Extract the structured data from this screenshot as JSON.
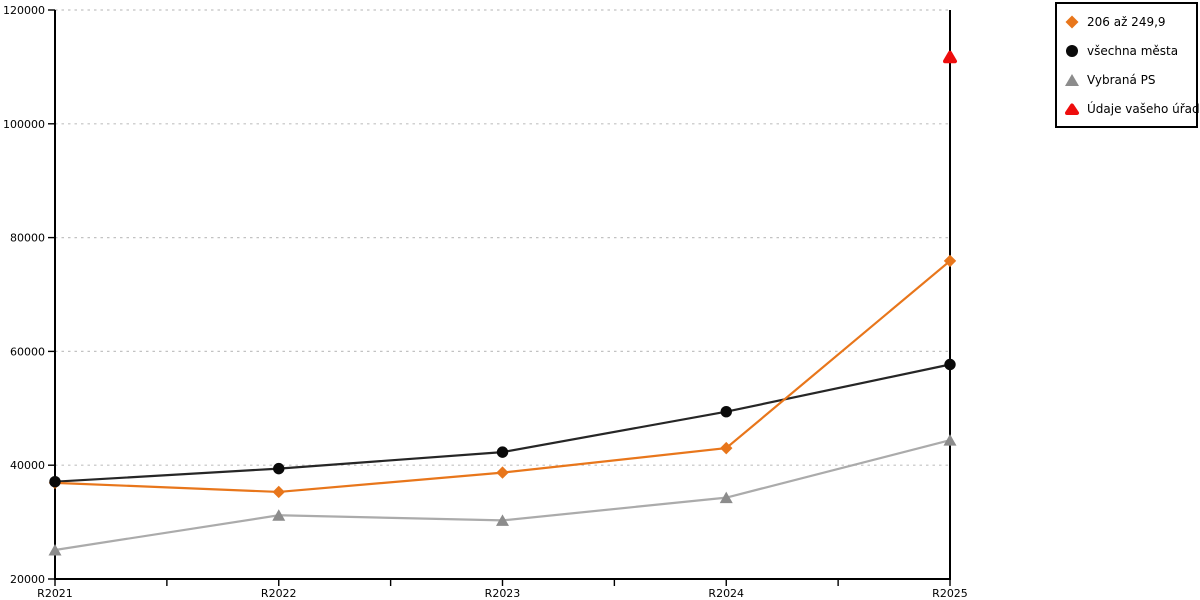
{
  "chart_data": {
    "type": "line",
    "title": "",
    "categories": [
      "R2021",
      "R2022",
      "R2023",
      "R2024",
      "R2025"
    ],
    "y_axis": {
      "min": 20000,
      "max": 120000,
      "tick_step": 20000,
      "tick_labels": [
        "20000",
        "40000",
        "60000",
        "80000",
        "100000",
        "120000"
      ]
    },
    "x_axis": {
      "minor_ticks_between_categories": true
    },
    "grid": {
      "horizontal": true,
      "style": "dotted",
      "color": "#C2C2C2"
    },
    "axis_color": "#000000",
    "legend": {
      "position": "top-right",
      "border_color": "#000000",
      "background": "#ffffff"
    },
    "series": [
      {
        "name": "206 až 249,9",
        "marker": "diamond",
        "color": "#E8761B",
        "values": [
          36900,
          35300,
          38700,
          43000,
          75900
        ]
      },
      {
        "name": "všechna města",
        "marker": "circle",
        "color": "#0A0A0A",
        "line_color": "#262626",
        "values": [
          37100,
          39400,
          42300,
          49400,
          57700
        ]
      },
      {
        "name": "Vybraná PS",
        "marker": "triangle",
        "color": "#8C8C8C",
        "line_color": "#ABABAB",
        "values": [
          25100,
          31200,
          30300,
          34300,
          44400
        ]
      },
      {
        "name": "Údaje vašeho úřadu",
        "marker": "triangle-rounded",
        "color": "#EE0D0D",
        "values": [
          null,
          null,
          null,
          null,
          111700
        ]
      }
    ]
  }
}
